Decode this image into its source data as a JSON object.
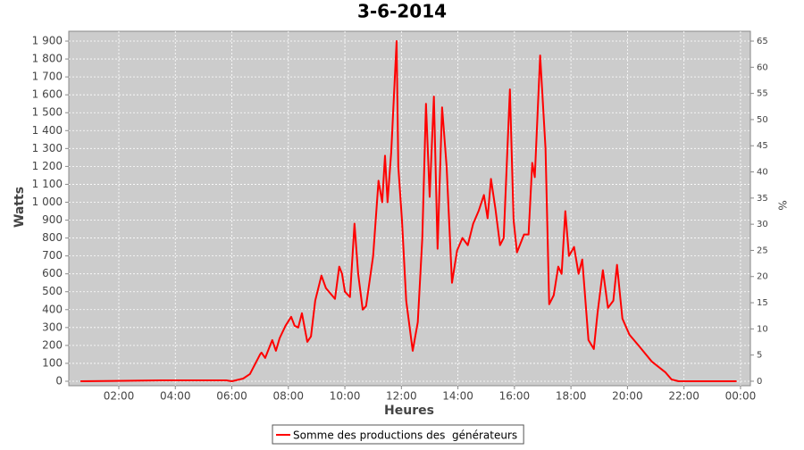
{
  "chart_data": {
    "type": "line",
    "title": "3-6-2014",
    "x_label": "Heures",
    "y_label": "Watts",
    "y2_label": "%",
    "x": [
      0.64,
      3.5,
      4.7,
      5.8,
      6.0,
      6.4,
      6.64,
      7.0,
      7.05,
      7.18,
      7.43,
      7.56,
      7.69,
      7.9,
      8.1,
      8.22,
      8.35,
      8.48,
      8.67,
      8.8,
      8.95,
      9.17,
      9.33,
      9.65,
      9.8,
      9.9,
      10.0,
      10.18,
      10.34,
      10.47,
      10.63,
      10.75,
      11.0,
      11.19,
      11.32,
      11.42,
      11.51,
      11.64,
      11.83,
      11.89,
      12.02,
      12.17,
      12.4,
      12.58,
      12.74,
      12.87,
      13.0,
      13.15,
      13.28,
      13.44,
      13.6,
      13.79,
      13.97,
      14.16,
      14.35,
      14.54,
      14.73,
      14.92,
      15.05,
      15.17,
      15.33,
      15.49,
      15.62,
      15.84,
      15.97,
      16.09,
      16.34,
      16.5,
      16.63,
      16.72,
      16.91,
      17.1,
      17.23,
      17.39,
      17.55,
      17.67,
      17.8,
      17.93,
      18.11,
      18.27,
      18.4,
      18.62,
      18.81,
      18.94,
      19.13,
      19.31,
      19.5,
      19.63,
      19.82,
      20.07,
      20.39,
      20.86,
      21.34,
      21.56,
      21.81,
      23.86
    ],
    "series": [
      {
        "name": "Somme des productions des  générateurs",
        "color": "#ff0000",
        "values": [
          0,
          5,
          5,
          5,
          0,
          15,
          40,
          150,
          160,
          130,
          230,
          170,
          240,
          310,
          360,
          310,
          300,
          380,
          220,
          250,
          450,
          590,
          520,
          460,
          640,
          600,
          500,
          470,
          880,
          600,
          400,
          420,
          700,
          1120,
          1000,
          1260,
          1000,
          1280,
          1900,
          1200,
          900,
          450,
          170,
          330,
          800,
          1550,
          1030,
          1590,
          740,
          1530,
          1200,
          550,
          730,
          800,
          760,
          880,
          950,
          1040,
          910,
          1130,
          960,
          760,
          800,
          1630,
          900,
          720,
          820,
          820,
          1220,
          1140,
          1820,
          1300,
          430,
          480,
          640,
          600,
          950,
          700,
          750,
          600,
          680,
          230,
          180,
          380,
          620,
          410,
          450,
          650,
          350,
          260,
          200,
          110,
          50,
          10,
          0,
          0
        ]
      }
    ],
    "xlim": [
      0.23,
      24.35
    ],
    "xticks": [
      {
        "value": 2,
        "label": "02:00"
      },
      {
        "value": 4,
        "label": "04:00"
      },
      {
        "value": 6,
        "label": "06:00"
      },
      {
        "value": 8,
        "label": "08:00"
      },
      {
        "value": 10,
        "label": "10:00"
      },
      {
        "value": 12,
        "label": "12:00"
      },
      {
        "value": 14,
        "label": "14:00"
      },
      {
        "value": 16,
        "label": "16:00"
      },
      {
        "value": 18,
        "label": "18:00"
      },
      {
        "value": 20,
        "label": "20:00"
      },
      {
        "value": 22,
        "label": "22:00"
      },
      {
        "value": 24,
        "label": "00:00"
      }
    ],
    "ylim": [
      -25,
      1955
    ],
    "yticks": [
      0,
      100,
      200,
      300,
      400,
      500,
      600,
      700,
      800,
      900,
      {
        "value": 1000,
        "label": "1 000"
      },
      {
        "value": 1100,
        "label": "1 100"
      },
      {
        "value": 1200,
        "label": "1 200"
      },
      {
        "value": 1300,
        "label": "1 300"
      },
      {
        "value": 1400,
        "label": "1 400"
      },
      {
        "value": 1500,
        "label": "1 500"
      },
      {
        "value": 1600,
        "label": "1 600"
      },
      {
        "value": 1700,
        "label": "1 700"
      },
      {
        "value": 1800,
        "label": "1 800"
      },
      {
        "value": 1900,
        "label": "1 900"
      }
    ],
    "y2lim": [
      -0.86,
      66.88
    ],
    "y2ticks": [
      0,
      5,
      10,
      15,
      20,
      25,
      30,
      35,
      40,
      45,
      50,
      55,
      60,
      65
    ],
    "grid": true,
    "plot_background": "#cccccc",
    "legend": "bottom"
  }
}
